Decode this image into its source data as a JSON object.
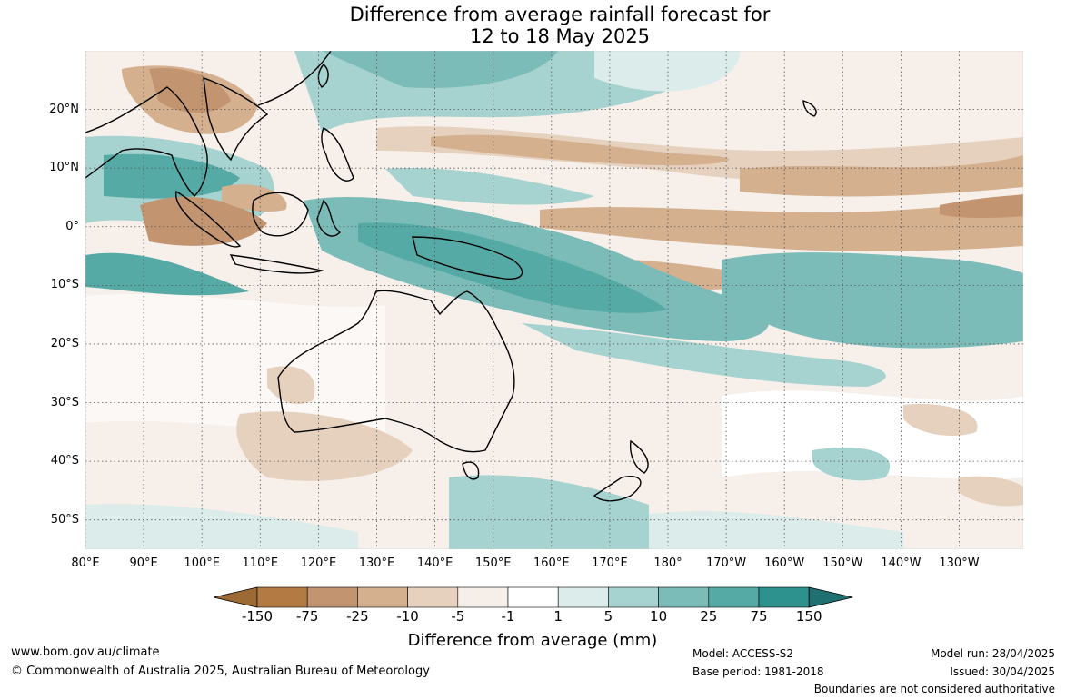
{
  "title": {
    "line1": "Difference from average rainfall forecast for",
    "line2": "12 to 18 May 2025"
  },
  "map": {
    "lon_range": [
      80,
      241
    ],
    "lat_range": [
      -55,
      30
    ],
    "lat_ticks": [
      "20°N",
      "10°N",
      "0°",
      "10°S",
      "20°S",
      "30°S",
      "40°S",
      "50°S"
    ],
    "lon_ticks": [
      "80°E",
      "90°E",
      "100°E",
      "110°E",
      "120°E",
      "130°E",
      "140°E",
      "150°E",
      "160°E",
      "170°E",
      "180°",
      "170°W",
      "160°W",
      "150°W",
      "140°W",
      "130°W"
    ],
    "grid": "dotted"
  },
  "legend": {
    "title": "Difference from average (mm)",
    "tick_labels": [
      "-150",
      "-75",
      "-25",
      "-10",
      "-5",
      "-1",
      "1",
      "5",
      "10",
      "25",
      "75",
      "150"
    ],
    "colors": [
      "#9c6a35",
      "#b37b43",
      "#c29570",
      "#d4b08f",
      "#e6d1be",
      "#f5eee9",
      "#ffffff",
      "#dbecea",
      "#a6d2cf",
      "#7cbcb8",
      "#56aaa6",
      "#2d928e",
      "#1f7070"
    ]
  },
  "footer": {
    "url": "www.bom.gov.au/climate",
    "copyright": "© Commonwealth of Australia 2025, Australian Bureau of Meteorology",
    "model": "Model: ACCESS-S2",
    "base_period": "Base period: 1981-2018",
    "model_run": "Model run: 28/04/2025",
    "issued": "Issued: 30/04/2025",
    "disclaimer": "Boundaries are not considered authoritative"
  }
}
